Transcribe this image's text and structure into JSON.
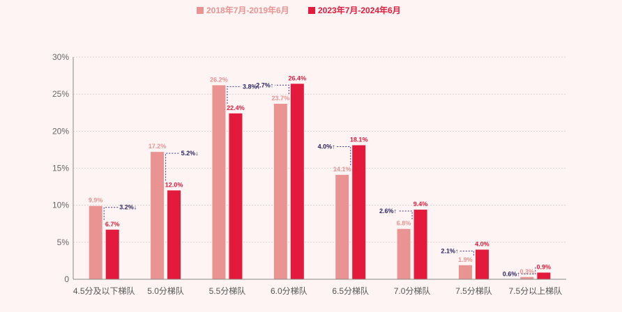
{
  "chart_data": {
    "type": "bar",
    "title": "",
    "xlabel": "",
    "ylabel": "",
    "ylim": [
      0,
      30
    ],
    "yticks": [
      "0",
      "5%",
      "10%",
      "15%",
      "20%",
      "25%",
      "30%"
    ],
    "grid": true,
    "legend_position": "top-center",
    "categories": [
      "4.5分及以下梯队",
      "5.0分梯队",
      "5.5分梯队",
      "6.0分梯队",
      "6.5分梯队",
      "7.0分梯队",
      "7.5分梯队",
      "7.5分以上梯队"
    ],
    "series": [
      {
        "name": "2018年7月-2019年6月",
        "color": "#e99493",
        "values": [
          9.9,
          17.2,
          26.2,
          23.7,
          14.1,
          6.8,
          1.9,
          0.3
        ],
        "labels": [
          "9.9%",
          "17.2%",
          "26.2%",
          "23.7%",
          "14.1%",
          "6.8%",
          "1.9%",
          "0.3%"
        ]
      },
      {
        "name": "2023年7月-2024年6月",
        "color": "#e31a3b",
        "values": [
          6.7,
          12.0,
          22.4,
          26.4,
          18.1,
          9.4,
          4.0,
          0.9
        ],
        "labels": [
          "6.7%",
          "12.0%",
          "22.4%",
          "26.4%",
          "18.1%",
          "9.4%",
          "4.0%",
          "0.9%"
        ]
      }
    ],
    "changes": [
      "3.2%↓",
      "5.2%↓",
      "3.8%↓",
      "2.7%↑",
      "4.0%↑",
      "2.6%↑",
      "2.1%↑",
      "0.6%↑"
    ]
  }
}
